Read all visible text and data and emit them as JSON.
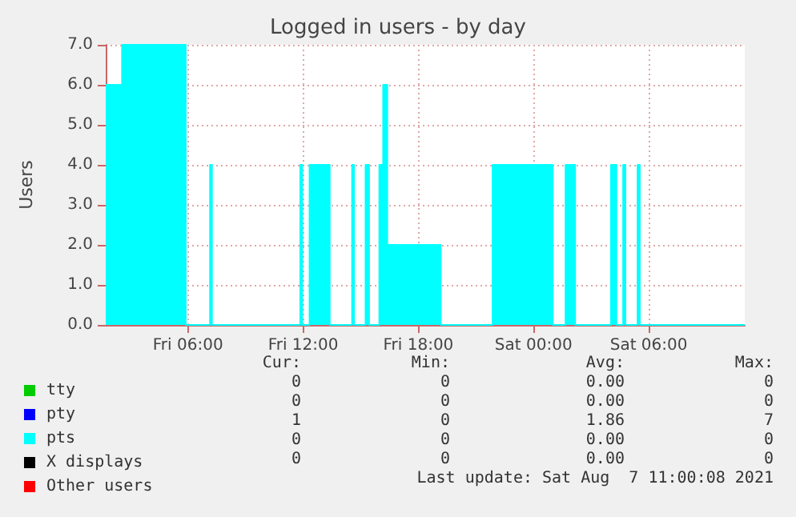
{
  "chart_data": {
    "type": "area",
    "title": "Logged in users - by day",
    "ylabel": "Users",
    "xlim": [
      "2021-08-06T01:43",
      "2021-08-07T11:00"
    ],
    "xticks": [
      {
        "value": "2021-08-06T06:00",
        "label": "Fri 06:00"
      },
      {
        "value": "2021-08-06T12:00",
        "label": "Fri 12:00"
      },
      {
        "value": "2021-08-06T18:00",
        "label": "Fri 18:00"
      },
      {
        "value": "2021-08-07T00:00",
        "label": "Sat 00:00"
      },
      {
        "value": "2021-08-07T06:00",
        "label": "Sat 06:00"
      }
    ],
    "ylim": [
      0,
      7
    ],
    "yticks": [
      {
        "value": 0,
        "label": "0.0"
      },
      {
        "value": 1,
        "label": "1.0"
      },
      {
        "value": 2,
        "label": "2.0"
      },
      {
        "value": 3,
        "label": "3.0"
      },
      {
        "value": 4,
        "label": "4.0"
      },
      {
        "value": 5,
        "label": "5.0"
      },
      {
        "value": 6,
        "label": "6.0"
      },
      {
        "value": 7,
        "label": "7.0"
      }
    ],
    "grid": true,
    "legend": "bottom left",
    "marker": "none",
    "series": [
      {
        "name": "tty",
        "color": "#00cc00"
      },
      {
        "name": "pty",
        "color": "#0000ff"
      },
      {
        "name": "pts",
        "color": "#00ffff",
        "x": [
          "2021-08-06T01:43",
          "2021-08-06T02:34",
          "2021-08-06T02:34",
          "2021-08-06T05:53",
          "2021-08-06T05:53",
          "2021-08-06T07:09",
          "2021-08-06T07:09",
          "2021-08-06T07:15",
          "2021-08-06T07:15",
          "2021-08-06T11:51",
          "2021-08-06T11:51",
          "2021-08-06T11:57",
          "2021-08-06T11:57",
          "2021-08-06T12:20",
          "2021-08-06T12:20",
          "2021-08-06T13:23",
          "2021-08-06T13:23",
          "2021-08-06T14:33",
          "2021-08-06T14:33",
          "2021-08-06T14:39",
          "2021-08-06T14:39",
          "2021-08-06T15:15",
          "2021-08-06T15:15",
          "2021-08-06T15:26",
          "2021-08-06T15:26",
          "2021-08-06T15:58",
          "2021-08-06T15:58",
          "2021-08-06T16:10",
          "2021-08-06T16:10",
          "2021-08-06T16:23",
          "2021-08-06T16:23",
          "2021-08-06T19:10",
          "2021-08-06T19:10",
          "2021-08-06T21:52",
          "2021-08-06T21:52",
          "2021-08-07T01:00",
          "2021-08-07T01:00",
          "2021-08-07T01:40",
          "2021-08-07T01:40",
          "2021-08-07T02:10",
          "2021-08-07T02:10",
          "2021-08-07T04:02",
          "2021-08-07T04:02",
          "2021-08-07T04:19",
          "2021-08-07T04:19",
          "2021-08-07T04:40",
          "2021-08-07T04:40",
          "2021-08-07T04:47",
          "2021-08-07T04:47",
          "2021-08-07T05:25",
          "2021-08-07T05:25",
          "2021-08-07T05:32",
          "2021-08-07T05:32",
          "2021-08-07T11:00"
        ],
        "values": [
          6,
          6,
          7,
          7,
          0,
          0,
          4,
          4,
          0,
          0,
          4,
          4,
          0,
          0,
          4,
          4,
          0,
          0,
          4,
          4,
          0,
          0,
          4,
          4,
          0,
          0,
          4,
          4,
          6,
          6,
          2,
          2,
          0,
          0,
          4,
          4,
          0,
          0,
          4,
          4,
          0,
          0,
          4,
          4,
          0,
          0,
          4,
          4,
          0,
          0,
          4,
          4,
          0,
          0
        ]
      },
      {
        "name": "X displays",
        "color": "#000000"
      },
      {
        "name": "Other users",
        "color": "#ff0000"
      }
    ],
    "annotations": [
      "Cur:",
      "Min:",
      "Avg:",
      "Max:",
      "0",
      "0",
      "0.00",
      "0",
      "0",
      "0",
      "0.00",
      "0",
      "1",
      "0",
      "1.86",
      "7",
      "0",
      "0",
      "0.00",
      "0",
      "0",
      "0",
      "0.00",
      "0",
      "Last update: Sat Aug  7 11:00:08 2021"
    ]
  }
}
